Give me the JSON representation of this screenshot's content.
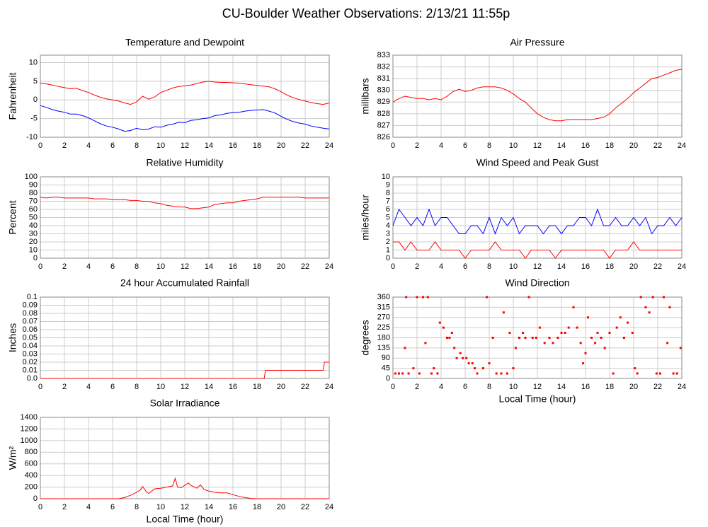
{
  "title": "CU-Boulder Weather Observations: 2/13/21 11:55p",
  "chart_data": [
    {
      "type": "line",
      "title": "Temperature and Dewpoint",
      "y_label": "Fahrenheit",
      "xlim": [
        0,
        24
      ],
      "xticks": [
        0,
        2,
        4,
        6,
        8,
        10,
        12,
        14,
        16,
        18,
        20,
        22,
        24
      ],
      "ylim": [
        -10,
        12
      ],
      "yticks": [
        -10,
        -5,
        0,
        5,
        10
      ],
      "grid": true,
      "x": [
        0,
        0.5,
        1,
        1.5,
        2,
        2.5,
        3,
        3.5,
        4,
        4.5,
        5,
        5.5,
        6,
        6.5,
        7,
        7.5,
        8,
        8.5,
        9,
        9.5,
        10,
        10.5,
        11,
        11.5,
        12,
        12.5,
        13,
        13.5,
        14,
        14.5,
        15,
        15.5,
        16,
        16.5,
        17,
        17.5,
        18,
        18.5,
        19,
        19.5,
        20,
        20.5,
        21,
        21.5,
        22,
        22.5,
        23,
        23.5,
        24
      ],
      "series": [
        {
          "color": "#ff0000",
          "values": [
            4.5,
            4.3,
            4,
            3.6,
            3.3,
            3.0,
            3.1,
            2.5,
            2.0,
            1.3,
            0.7,
            0.3,
            0,
            -0.3,
            -0.8,
            -1.2,
            -0.5,
            1.0,
            0.2,
            0.8,
            2.0,
            2.6,
            3.2,
            3.6,
            3.8,
            4.0,
            4.4,
            4.8,
            5.0,
            4.8,
            4.7,
            4.7,
            4.6,
            4.5,
            4.3,
            4.1,
            3.9,
            3.7,
            3.5,
            3.0,
            2.2,
            1.3,
            0.6,
            0.1,
            -0.3,
            -0.7,
            -1.0,
            -1.2,
            -0.8
          ]
        },
        {
          "color": "#0000ff",
          "values": [
            -1.5,
            -2,
            -2.6,
            -3,
            -3.3,
            -3.8,
            -3.8,
            -4.2,
            -4.8,
            -5.6,
            -6.4,
            -7,
            -7.3,
            -7.8,
            -8.4,
            -8.2,
            -7.6,
            -8.0,
            -7.8,
            -7.2,
            -7.3,
            -6.8,
            -6.5,
            -6.0,
            -6.1,
            -5.5,
            -5.3,
            -5.0,
            -4.8,
            -4.2,
            -4.0,
            -3.6,
            -3.4,
            -3.3,
            -3.0,
            -2.8,
            -2.7,
            -2.6,
            -3.0,
            -3.5,
            -4.4,
            -5.2,
            -5.8,
            -6.2,
            -6.5,
            -7.0,
            -7.3,
            -7.6,
            -7.8
          ]
        }
      ]
    },
    {
      "type": "line",
      "title": "Air Pressure",
      "y_label": "millibars",
      "xlim": [
        0,
        24
      ],
      "xticks": [
        0,
        2,
        4,
        6,
        8,
        10,
        12,
        14,
        16,
        18,
        20,
        22,
        24
      ],
      "ylim": [
        826,
        833
      ],
      "yticks": [
        826,
        827,
        828,
        829,
        830,
        831,
        832,
        833
      ],
      "grid": true,
      "x": [
        0,
        0.5,
        1,
        1.5,
        2,
        2.5,
        3,
        3.5,
        4,
        4.5,
        5,
        5.5,
        6,
        6.5,
        7,
        7.5,
        8,
        8.5,
        9,
        9.5,
        10,
        10.5,
        11,
        11.5,
        12,
        12.5,
        13,
        13.5,
        14,
        14.5,
        15,
        15.5,
        16,
        16.5,
        17,
        17.5,
        18,
        18.5,
        19,
        19.5,
        20,
        20.5,
        21,
        21.5,
        22,
        22.5,
        23,
        23.5,
        24
      ],
      "series": [
        {
          "color": "#ff0000",
          "values": [
            829.0,
            829.3,
            829.5,
            829.4,
            829.3,
            829.3,
            829.2,
            829.3,
            829.2,
            829.5,
            829.9,
            830.1,
            829.9,
            830.0,
            830.2,
            830.3,
            830.3,
            830.3,
            830.2,
            830.0,
            829.7,
            829.3,
            829.0,
            828.5,
            828.0,
            827.7,
            827.5,
            827.4,
            827.4,
            827.5,
            827.5,
            827.5,
            827.5,
            827.5,
            827.6,
            827.7,
            828.0,
            828.5,
            828.9,
            829.3,
            829.8,
            830.2,
            830.6,
            831.0,
            831.1,
            831.3,
            831.5,
            831.7,
            831.8
          ]
        }
      ]
    },
    {
      "type": "line",
      "title": "Relative Humidity",
      "y_label": "Percent",
      "xlim": [
        0,
        24
      ],
      "xticks": [
        0,
        2,
        4,
        6,
        8,
        10,
        12,
        14,
        16,
        18,
        20,
        22,
        24
      ],
      "ylim": [
        0,
        100
      ],
      "yticks": [
        0,
        10,
        20,
        30,
        40,
        50,
        60,
        70,
        80,
        90,
        100
      ],
      "grid": true,
      "x": [
        0,
        0.5,
        1,
        1.5,
        2,
        2.5,
        3,
        3.5,
        4,
        4.5,
        5,
        5.5,
        6,
        6.5,
        7,
        7.5,
        8,
        8.5,
        9,
        9.5,
        10,
        10.5,
        11,
        11.5,
        12,
        12.5,
        13,
        13.5,
        14,
        14.5,
        15,
        15.5,
        16,
        16.5,
        17,
        17.5,
        18,
        18.5,
        19,
        19.5,
        20,
        20.5,
        21,
        21.5,
        22,
        22.5,
        23,
        23.5,
        24
      ],
      "series": [
        {
          "color": "#ff0000",
          "values": [
            75,
            74,
            75,
            75,
            74,
            74,
            74,
            74,
            74,
            73,
            73,
            73,
            72,
            72,
            72,
            71,
            71,
            70,
            70,
            68,
            67,
            65,
            64,
            63,
            63,
            61,
            61,
            62,
            63,
            66,
            67,
            68,
            68,
            70,
            71,
            72,
            73,
            75,
            75,
            75,
            75,
            75,
            75,
            75,
            74,
            74,
            74,
            74,
            74
          ]
        }
      ]
    },
    {
      "type": "line",
      "title": "Wind Speed and Peak Gust",
      "y_label": "miles/hour",
      "xlim": [
        0,
        24
      ],
      "xticks": [
        0,
        2,
        4,
        6,
        8,
        10,
        12,
        14,
        16,
        18,
        20,
        22,
        24
      ],
      "ylim": [
        0,
        10
      ],
      "yticks": [
        0,
        1,
        2,
        3,
        4,
        5,
        6,
        7,
        8,
        9,
        10
      ],
      "grid": true,
      "x": [
        0,
        0.5,
        1,
        1.5,
        2,
        2.5,
        3,
        3.5,
        4,
        4.5,
        5,
        5.5,
        6,
        6.5,
        7,
        7.5,
        8,
        8.5,
        9,
        9.5,
        10,
        10.5,
        11,
        11.5,
        12,
        12.5,
        13,
        13.5,
        14,
        14.5,
        15,
        15.5,
        16,
        16.5,
        17,
        17.5,
        18,
        18.5,
        19,
        19.5,
        20,
        20.5,
        21,
        21.5,
        22,
        22.5,
        23,
        23.5,
        24
      ],
      "series": [
        {
          "color": "#0000ff",
          "values": [
            4,
            6,
            5,
            4,
            5,
            4,
            6,
            4,
            5,
            5,
            4,
            3,
            3,
            4,
            4,
            3,
            5,
            3,
            5,
            4,
            5,
            3,
            4,
            4,
            4,
            3,
            4,
            4,
            3,
            4,
            4,
            5,
            5,
            4,
            6,
            4,
            4,
            5,
            4,
            4,
            5,
            4,
            5,
            3,
            4,
            4,
            5,
            4,
            5
          ]
        },
        {
          "color": "#ff0000",
          "values": [
            2,
            2,
            1,
            2,
            1,
            1,
            1,
            2,
            1,
            1,
            1,
            1,
            0,
            1,
            1,
            1,
            1,
            2,
            1,
            1,
            1,
            1,
            0,
            1,
            1,
            1,
            1,
            0,
            1,
            1,
            1,
            1,
            1,
            1,
            1,
            1,
            0,
            1,
            1,
            1,
            2,
            1,
            1,
            1,
            1,
            1,
            1,
            1,
            1
          ]
        }
      ]
    },
    {
      "type": "line",
      "title": "24 hour Accumulated Rainfall",
      "y_label": "Inches",
      "xlim": [
        0,
        24
      ],
      "xticks": [
        0,
        2,
        4,
        6,
        8,
        10,
        12,
        14,
        16,
        18,
        20,
        22,
        24
      ],
      "ylim": [
        0,
        0.1
      ],
      "yticks": [
        {
          "value": 0,
          "label": "0.0"
        },
        0.01,
        0.02,
        0.03,
        0.04,
        0.05,
        0.06,
        0.07,
        0.08,
        0.09,
        0.1
      ],
      "grid": true,
      "x": [
        0,
        18.6,
        18.7,
        23.5,
        23.6,
        24
      ],
      "series": [
        {
          "color": "#ff0000",
          "values": [
            0,
            0,
            0.01,
            0.01,
            0.02,
            0.02
          ]
        }
      ]
    },
    {
      "type": "scatter",
      "title": "Wind Direction",
      "y_label": "degrees",
      "x_label": "Local Time (hour)",
      "xlim": [
        0,
        24
      ],
      "xticks": [
        0,
        2,
        4,
        6,
        8,
        10,
        12,
        14,
        16,
        18,
        20,
        22,
        24
      ],
      "ylim": [
        0,
        360
      ],
      "yticks": [
        0,
        45,
        90,
        135,
        180,
        225,
        270,
        315,
        360
      ],
      "grid": true,
      "x": [
        0.2,
        0.5,
        0.8,
        1.0,
        1.1,
        1.3,
        1.7,
        2.0,
        2.2,
        2.5,
        2.7,
        2.9,
        3.2,
        3.4,
        3.7,
        3.9,
        4.2,
        4.5,
        4.7,
        4.9,
        5.1,
        5.3,
        5.6,
        5.8,
        6.1,
        6.3,
        6.6,
        6.8,
        7.0,
        7.5,
        7.8,
        8.0,
        8.3,
        8.6,
        9.0,
        9.2,
        9.5,
        9.7,
        10.0,
        10.2,
        10.5,
        10.8,
        11.0,
        11.3,
        11.6,
        11.9,
        12.2,
        12.6,
        13.0,
        13.3,
        13.7,
        14.0,
        14.3,
        14.6,
        15.0,
        15.3,
        15.6,
        15.8,
        16.0,
        16.2,
        16.5,
        16.8,
        17.0,
        17.3,
        17.6,
        18.0,
        18.3,
        18.6,
        18.9,
        19.2,
        19.5,
        19.9,
        20.1,
        20.3,
        20.6,
        21.0,
        21.3,
        21.6,
        21.9,
        22.2,
        22.5,
        22.8,
        23.0,
        23.3,
        23.6,
        23.9
      ],
      "series": [
        {
          "color": "#ff0000",
          "values": [
            22,
            22,
            22,
            135,
            360,
            22,
            45,
            360,
            22,
            360,
            157,
            360,
            22,
            45,
            22,
            247,
            225,
            180,
            180,
            202,
            135,
            90,
            112,
            90,
            90,
            67,
            67,
            45,
            22,
            45,
            360,
            67,
            180,
            22,
            22,
            292,
            22,
            202,
            45,
            135,
            180,
            202,
            180,
            360,
            180,
            180,
            225,
            157,
            180,
            157,
            180,
            202,
            202,
            225,
            315,
            225,
            157,
            67,
            112,
            270,
            180,
            157,
            202,
            180,
            135,
            202,
            22,
            225,
            270,
            180,
            247,
            202,
            45,
            22,
            360,
            315,
            292,
            360,
            22,
            22,
            360,
            157,
            315,
            22,
            22,
            135
          ]
        }
      ]
    },
    {
      "type": "line",
      "title": "Solar Irradiance",
      "y_label": "W/m²",
      "x_label": "Local Time (hour)",
      "xlim": [
        0,
        24
      ],
      "xticks": [
        0,
        2,
        4,
        6,
        8,
        10,
        12,
        14,
        16,
        18,
        20,
        22,
        24
      ],
      "ylim": [
        0,
        1400
      ],
      "yticks": [
        0,
        200,
        400,
        600,
        800,
        1000,
        1200,
        1400
      ],
      "grid": true,
      "x": [
        0,
        6.5,
        7,
        7.5,
        8,
        8.3,
        8.5,
        8.8,
        9,
        9.5,
        10,
        10.5,
        11,
        11.2,
        11.4,
        11.7,
        12,
        12.3,
        12.5,
        13,
        13.3,
        13.6,
        14,
        14.5,
        15,
        15.5,
        16,
        16.5,
        17,
        17.5,
        18,
        24
      ],
      "series": [
        {
          "color": "#ff0000",
          "values": [
            0,
            0,
            20,
            60,
            110,
            150,
            210,
            120,
            90,
            170,
            180,
            200,
            220,
            350,
            200,
            190,
            230,
            270,
            230,
            180,
            240,
            160,
            130,
            110,
            100,
            100,
            70,
            40,
            20,
            5,
            0,
            0
          ]
        }
      ]
    }
  ]
}
